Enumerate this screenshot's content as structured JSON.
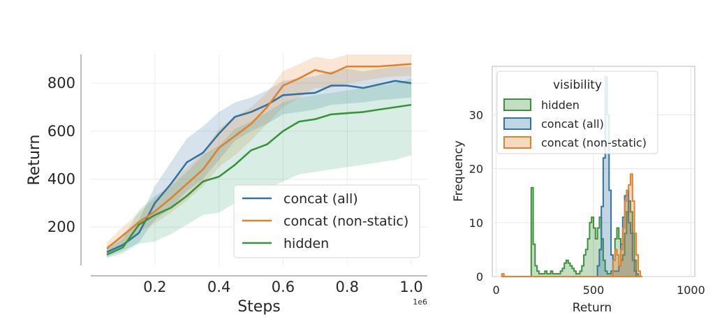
{
  "chart_data": [
    {
      "type": "line",
      "xlabel": "Steps",
      "ylabel": "Return",
      "x_offset_label": "1e6",
      "xlim": [
        0.0,
        1.05
      ],
      "ylim": [
        40,
        920
      ],
      "xticks": [
        "0.2",
        "0.4",
        "0.6",
        "0.8",
        "1.0"
      ],
      "xtick_values": [
        0.2,
        0.4,
        0.6,
        0.8,
        1.0
      ],
      "yticks": [
        "200",
        "400",
        "600",
        "800"
      ],
      "ytick_values": [
        200,
        400,
        600,
        800
      ],
      "grid": true,
      "legend_position": "lower-right",
      "x": [
        0.05,
        0.1,
        0.15,
        0.2,
        0.25,
        0.3,
        0.35,
        0.4,
        0.45,
        0.5,
        0.55,
        0.6,
        0.65,
        0.7,
        0.75,
        0.8,
        0.85,
        0.9,
        0.95,
        1.0
      ],
      "series": [
        {
          "name": "concat (all)",
          "color": "#3274a1",
          "values": [
            95,
            125,
            175,
            300,
            380,
            470,
            510,
            590,
            660,
            680,
            710,
            750,
            755,
            760,
            790,
            790,
            780,
            795,
            810,
            800
          ],
          "lower": [
            75,
            100,
            135,
            230,
            280,
            350,
            400,
            480,
            560,
            600,
            630,
            670,
            680,
            690,
            710,
            715,
            720,
            730,
            735,
            740
          ],
          "upper": [
            120,
            160,
            230,
            370,
            470,
            570,
            620,
            680,
            720,
            740,
            770,
            810,
            820,
            830,
            850,
            860,
            850,
            860,
            870,
            870
          ]
        },
        {
          "name": "concat (non-static)",
          "color": "#e1812c",
          "values": [
            110,
            165,
            220,
            265,
            320,
            380,
            440,
            530,
            580,
            630,
            700,
            790,
            820,
            855,
            840,
            870,
            870,
            870,
            875,
            880
          ],
          "lower": [
            90,
            130,
            180,
            215,
            260,
            310,
            370,
            450,
            500,
            560,
            630,
            700,
            740,
            780,
            780,
            800,
            810,
            820,
            830,
            830
          ],
          "upper": [
            135,
            200,
            260,
            320,
            380,
            450,
            510,
            610,
            660,
            700,
            760,
            850,
            880,
            910,
            900,
            920,
            920,
            920,
            920,
            920
          ]
        },
        {
          "name": "hidden",
          "color": "#3a923a",
          "band_color": "#3aa87a",
          "values": [
            85,
            115,
            210,
            250,
            280,
            330,
            390,
            410,
            460,
            520,
            545,
            600,
            640,
            650,
            670,
            675,
            680,
            690,
            700,
            710
          ],
          "lower": [
            70,
            90,
            130,
            140,
            170,
            210,
            250,
            260,
            300,
            330,
            360,
            390,
            420,
            430,
            440,
            450,
            460,
            470,
            480,
            500
          ],
          "upper": [
            105,
            150,
            270,
            330,
            370,
            430,
            500,
            540,
            610,
            640,
            680,
            720,
            740,
            750,
            760,
            770,
            780,
            790,
            800,
            820
          ]
        }
      ]
    },
    {
      "type": "histogram",
      "xlabel": "Return",
      "ylabel": "Frequency",
      "xlim": [
        -20,
        1020
      ],
      "ylim": [
        0,
        39
      ],
      "xticks": [
        "0",
        "500",
        "1000"
      ],
      "xtick_values": [
        0,
        500,
        1000
      ],
      "yticks": [
        "0",
        "10",
        "20",
        "30"
      ],
      "ytick_values": [
        0,
        10,
        20,
        30
      ],
      "grid": true,
      "legend_title": "visibility",
      "legend_position": "top-left",
      "bin_start": 30,
      "bin_width": 10,
      "series": [
        {
          "name": "hidden",
          "color": "#3a923a",
          "fill": "#9fd19f",
          "counts": [
            0,
            0,
            0,
            0,
            0,
            0,
            0,
            0,
            0,
            0,
            0,
            0,
            0,
            0,
            0,
            16.5,
            6,
            2,
            1,
            0.5,
            0.5,
            0.5,
            1,
            0.5,
            0.5,
            1,
            0.5,
            0.5,
            0.5,
            0.5,
            1,
            1.5,
            2.5,
            3,
            2.5,
            2,
            1.5,
            1,
            0.5,
            0.5,
            1,
            2,
            4,
            5,
            7,
            10,
            11,
            9,
            7,
            9,
            11,
            7,
            3,
            1,
            0.5,
            0.5,
            1,
            3,
            7,
            9,
            7,
            3,
            4,
            8,
            12,
            14,
            12,
            8,
            3,
            0.5,
            0,
            0
          ]
        },
        {
          "name": "concat (all)",
          "color": "#3274a1",
          "fill": "#9dbbd9",
          "counts": [
            0,
            0,
            0,
            0,
            0,
            0,
            0,
            0,
            0,
            0,
            0,
            0,
            0,
            0,
            0,
            0,
            0,
            0,
            0,
            0,
            0,
            0,
            0,
            0,
            0,
            0,
            0,
            0,
            0,
            0,
            0,
            0,
            0,
            0,
            0,
            0,
            0,
            0,
            0,
            0,
            0,
            0,
            0,
            0,
            0,
            0,
            0,
            0,
            0,
            2,
            5,
            13,
            22,
            37,
            30,
            16,
            4,
            1,
            1,
            1,
            2,
            6,
            11,
            15,
            16,
            10,
            8,
            3,
            1,
            0,
            0,
            0
          ]
        },
        {
          "name": "concat (non-static)",
          "color": "#e1812c",
          "fill": "#f6c5a0",
          "counts": [
            0.5,
            0,
            0,
            0,
            0,
            0,
            0,
            0,
            0,
            0,
            0,
            0,
            0,
            0,
            0,
            0,
            0,
            0,
            0,
            0,
            0,
            0,
            0,
            0,
            0,
            0,
            0,
            0,
            0,
            0,
            0,
            0,
            0,
            0,
            0,
            0,
            0,
            0,
            0,
            0,
            0,
            0,
            0,
            0,
            0,
            0,
            0,
            0,
            0,
            0,
            0,
            0,
            0,
            0,
            0,
            0,
            0,
            3,
            5,
            4,
            2,
            5,
            9,
            14,
            16,
            17,
            19,
            14,
            8,
            4,
            1,
            0
          ]
        }
      ]
    }
  ]
}
